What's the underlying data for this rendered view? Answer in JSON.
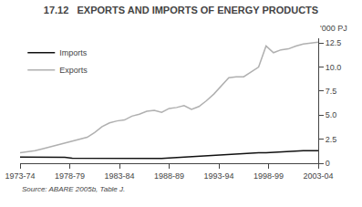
{
  "chart_data": {
    "type": "line",
    "title": "17.12   EXPORTS AND IMPORTS OF ENERGY PRODUCTS",
    "ylabel": "'000 PJ",
    "annotations": [
      "Source: ABARE 2005b, Table J."
    ],
    "x": [
      0,
      0.75,
      1.5,
      2.25,
      3,
      3.75,
      4.5,
      5.25,
      6,
      6.75,
      7.5,
      8.25,
      9,
      9.75,
      10.5,
      11.25,
      12,
      12.75,
      13.5,
      14.25,
      15,
      15.75,
      16.5,
      17.25,
      18,
      18.75,
      19.5,
      20.25,
      21,
      21.75,
      22.5,
      23.25,
      24,
      24.75,
      25.5,
      26.25,
      27,
      27.75,
      28.5,
      29.25,
      30
    ],
    "xlim": [
      0,
      30
    ],
    "xticks": [
      {
        "value": 0,
        "label": "1973-74"
      },
      {
        "value": 5,
        "label": "1978-79"
      },
      {
        "value": 10,
        "label": "1983-84"
      },
      {
        "value": 15,
        "label": "1988-89"
      },
      {
        "value": 20,
        "label": "1993-94"
      },
      {
        "value": 25,
        "label": "1998-99"
      },
      {
        "value": 30,
        "label": "2003-04"
      }
    ],
    "ylim": [
      0,
      13
    ],
    "yticks": [
      0,
      2.5,
      {
        "value": 5,
        "label": "5.0"
      },
      7.5,
      {
        "value": 10,
        "label": "10.0"
      },
      12.5
    ],
    "grid": false,
    "legend": "upper left",
    "series": [
      {
        "name": "Imports",
        "color": "#111111",
        "values": [
          0.65,
          0.65,
          0.6,
          0.6,
          0.62,
          0.62,
          0.62,
          0.52,
          0.52,
          0.52,
          0.5,
          0.5,
          0.45,
          0.45,
          0.45,
          0.45,
          0.45,
          0.5,
          0.5,
          0.5,
          0.55,
          0.6,
          0.65,
          0.7,
          0.75,
          0.8,
          0.85,
          0.9,
          0.95,
          1.0,
          1.0,
          1.05,
          1.1,
          1.1,
          1.15,
          1.2,
          1.2,
          1.25,
          1.3,
          1.3,
          1.3
        ]
      },
      {
        "name": "Exports",
        "color": "#b0b0b0",
        "values": [
          1.1,
          1.2,
          1.3,
          1.5,
          1.7,
          1.9,
          2.1,
          2.3,
          2.5,
          2.7,
          3.2,
          3.8,
          4.2,
          4.4,
          4.5,
          4.9,
          5.1,
          5.4,
          5.5,
          5.3,
          5.7,
          5.8,
          6.0,
          5.6,
          5.9,
          6.5,
          7.2,
          8.0,
          8.9,
          9.0,
          9.0,
          9.5,
          10.0,
          12.2,
          11.5,
          11.8,
          11.9,
          12.2,
          12.4,
          12.5,
          12.6
        ]
      }
    ]
  }
}
